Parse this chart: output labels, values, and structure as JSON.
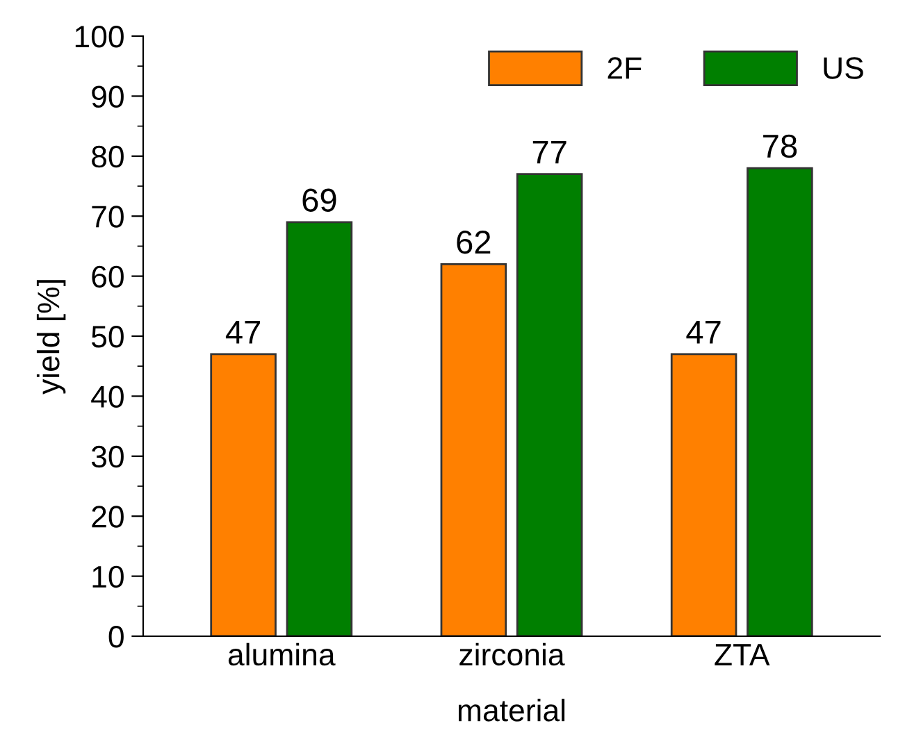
{
  "chart_data": {
    "type": "bar",
    "xlabel": "material",
    "ylabel": "yield [%]",
    "categories": [
      "alumina",
      "zirconia",
      "ZTA"
    ],
    "series": [
      {
        "name": "2F",
        "color": "#ff8000",
        "values": [
          47,
          62,
          47
        ]
      },
      {
        "name": "US",
        "color": "#007f00",
        "values": [
          69,
          77,
          78
        ]
      }
    ],
    "ylim": [
      0,
      100
    ],
    "yticks": [
      0,
      10,
      20,
      30,
      40,
      50,
      60,
      70,
      80,
      90,
      100
    ],
    "data_labels": true,
    "legend": "top right",
    "grid": false
  }
}
